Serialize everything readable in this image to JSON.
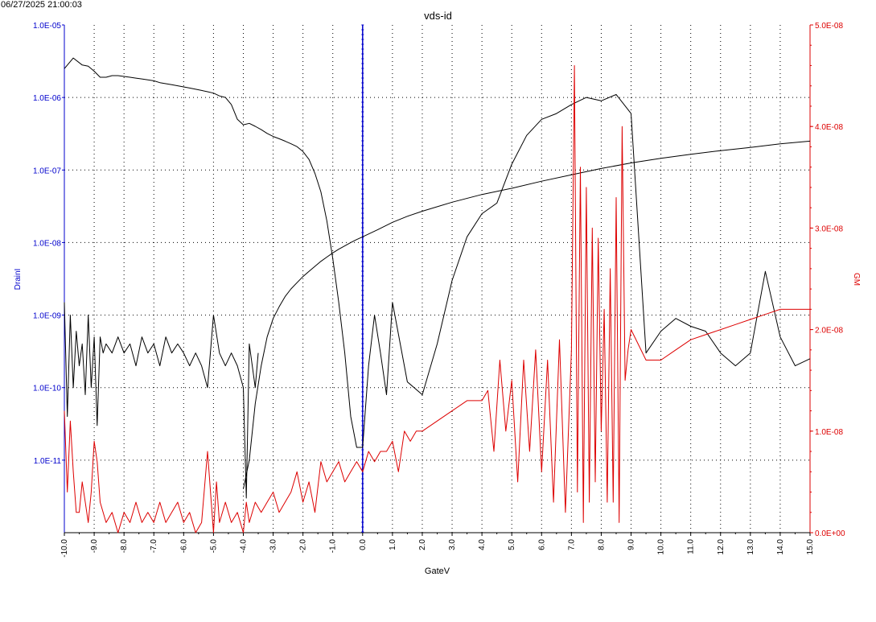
{
  "timestamp": "06/27/2025 21:00:03",
  "chart_data": {
    "type": "line",
    "title": "vds-id",
    "xlabel": "GateV",
    "ylabel": "DrainI",
    "y2label": "GM",
    "xlim": [
      -10,
      15
    ],
    "ylim": [
      1e-12,
      1e-05
    ],
    "y_scale": "log",
    "y2lim": [
      0,
      5e-08
    ],
    "grid": true,
    "colors": {
      "left_axis": "#0000cc",
      "right_axis": "#dd0000",
      "curve_default": "#000000",
      "marker_line": "#0000cc"
    },
    "x_tick_labels": [
      "-10.0",
      "-9.0",
      "-8.0",
      "-7.0",
      "-6.0",
      "-5.0",
      "-4.0",
      "-3.0",
      "-2.0",
      "-1.0",
      "0.0",
      "1.0",
      "2.0",
      "3.0",
      "4.0",
      "5.0",
      "6.0",
      "7.0",
      "8.0",
      "9.0",
      "10.0",
      "11.0",
      "12.0",
      "13.0",
      "14.0",
      "15.0"
    ],
    "y_tick_labels": [
      "1.0E-05",
      "1.0E-06",
      "1.0E-07",
      "1.0E-08",
      "1.0E-09",
      "1.0E-10",
      "1.0E-11"
    ],
    "y2_tick_labels": [
      "5.0E-08",
      "4.0E-08",
      "3.0E-08",
      "2.0E-08",
      "1.0E-08",
      "0.0E+00"
    ],
    "marker_x": 0,
    "series": [
      {
        "axis": "left",
        "color": "#000000",
        "x": [
          -10,
          -9.7,
          -9.4,
          -9.2,
          -9,
          -8.8,
          -8.6,
          -8.4,
          -8.2,
          -8,
          -7.8,
          -7.6,
          -7.4,
          -7.2,
          -7,
          -6.8,
          -6.6,
          -6.4,
          -6.2,
          -6,
          -5.8,
          -5.6,
          -5.4,
          -5.2,
          -5,
          -4.8,
          -4.6,
          -4.4,
          -4.2,
          -4,
          -3.8,
          -3.6,
          -3.4,
          -3.2,
          -3,
          -2.8,
          -2.6,
          -2.4,
          -2.2,
          -2,
          -1.8,
          -1.6,
          -1.4,
          -1.2,
          -1,
          -0.8,
          -0.6,
          -0.4,
          -0.2,
          0,
          0.2,
          0.4,
          0.6,
          0.8,
          1,
          1.5,
          2,
          2.5,
          3,
          3.5,
          4,
          4.5,
          5,
          5.5,
          6,
          6.5,
          7,
          7.5,
          8,
          8.5,
          9,
          9.5,
          10,
          10.5,
          11,
          11.5,
          12,
          12.5,
          13,
          13.5,
          14,
          14.5,
          15
        ],
        "y": [
          2.5e-06,
          3.5e-06,
          2.8e-06,
          2.7e-06,
          2.3e-06,
          1.9e-06,
          1.9e-06,
          2e-06,
          2e-06,
          1.95e-06,
          1.9e-06,
          1.85e-06,
          1.8e-06,
          1.75e-06,
          1.7e-06,
          1.6e-06,
          1.55e-06,
          1.5e-06,
          1.45e-06,
          1.4e-06,
          1.35e-06,
          1.3e-06,
          1.25e-06,
          1.2e-06,
          1.15e-06,
          1.05e-06,
          1e-06,
          8e-07,
          5e-07,
          4.2e-07,
          4.4e-07,
          4e-07,
          3.6e-07,
          3.2e-07,
          2.9e-07,
          2.7e-07,
          2.5e-07,
          2.3e-07,
          2.1e-07,
          1.8e-07,
          1.4e-07,
          9e-08,
          5e-08,
          2e-08,
          6e-09,
          1.5e-09,
          3e-10,
          4e-11,
          1.5e-11,
          1.5e-11,
          2e-10,
          1e-09,
          3e-10,
          8e-11,
          1.5e-09,
          1.2e-10,
          8e-11,
          4e-10,
          3e-09,
          1.2e-08,
          2.5e-08,
          3.5e-08,
          1.2e-07,
          3e-07,
          5e-07,
          6e-07,
          8e-07,
          1e-06,
          9e-07,
          1.1e-06,
          6e-07,
          3e-10,
          6e-10,
          9e-10,
          7e-10,
          6e-10,
          3e-10,
          2e-10,
          3e-10,
          4e-09,
          5e-10,
          2e-10,
          2.5e-10
        ]
      },
      {
        "axis": "left",
        "color": "#000000",
        "x": [
          -4,
          -3.8,
          -3.6,
          -3.4,
          -3.2,
          -3,
          -2.8,
          -2.6,
          -2.4,
          -2.2,
          -2,
          -1.8,
          -1.6,
          -1.4,
          -1.2,
          -1,
          -0.8,
          -0.6,
          -0.4,
          -0.2,
          0,
          0.5,
          1,
          1.5,
          2,
          3,
          4,
          5,
          6,
          7,
          8,
          9,
          10,
          11,
          12,
          13,
          14,
          15
        ],
        "y": [
          4e-12,
          1e-11,
          6e-11,
          2e-10,
          5e-10,
          9e-10,
          1.3e-09,
          1.8e-09,
          2.3e-09,
          2.8e-09,
          3.4e-09,
          4e-09,
          4.7e-09,
          5.5e-09,
          6.3e-09,
          7.2e-09,
          8.1e-09,
          9e-09,
          1e-08,
          1.1e-08,
          1.2e-08,
          1.5e-08,
          1.9e-08,
          2.3e-08,
          2.7e-08,
          3.6e-08,
          4.6e-08,
          5.6e-08,
          7e-08,
          8.6e-08,
          1.05e-07,
          1.25e-07,
          1.45e-07,
          1.65e-07,
          1.85e-07,
          2.05e-07,
          2.3e-07,
          2.5e-07
        ]
      },
      {
        "axis": "left",
        "color": "#000000",
        "x": [
          -10,
          -9.9,
          -9.8,
          -9.7,
          -9.6,
          -9.5,
          -9.4,
          -9.3,
          -9.2,
          -9.1,
          -9,
          -8.9,
          -8.8,
          -8.7,
          -8.6,
          -8.4,
          -8.2,
          -8,
          -7.8,
          -7.6,
          -7.4,
          -7.2,
          -7,
          -6.8,
          -6.6,
          -6.4,
          -6.2,
          -6,
          -5.8,
          -5.6,
          -5.4,
          -5.2,
          -5,
          -4.8,
          -4.6,
          -4.4,
          -4.2,
          -4,
          -3.9,
          -3.8,
          -3.7,
          -3.6,
          -3.5
        ],
        "y": [
          1.5e-09,
          4e-11,
          1e-09,
          1e-10,
          6e-10,
          2e-10,
          4e-10,
          8e-11,
          1e-09,
          1e-10,
          5e-10,
          3e-11,
          5e-10,
          3e-10,
          4e-10,
          3e-10,
          5e-10,
          3e-10,
          4e-10,
          2e-10,
          5e-10,
          3e-10,
          4e-10,
          2e-10,
          5e-10,
          3e-10,
          4e-10,
          3e-10,
          2e-10,
          3e-10,
          2e-10,
          1e-10,
          1e-09,
          3e-10,
          2e-10,
          3e-10,
          2e-10,
          1e-10,
          3e-12,
          4e-10,
          2e-10,
          1e-10,
          3e-10
        ]
      },
      {
        "axis": "right",
        "color": "#dd0000",
        "x": [
          -10,
          -9.9,
          -9.8,
          -9.7,
          -9.6,
          -9.5,
          -9.4,
          -9.3,
          -9.2,
          -9.1,
          -9,
          -8.9,
          -8.8,
          -8.6,
          -8.4,
          -8.2,
          -8,
          -7.8,
          -7.6,
          -7.4,
          -7.2,
          -7,
          -6.8,
          -6.6,
          -6.4,
          -6.2,
          -6,
          -5.8,
          -5.6,
          -5.4,
          -5.2,
          -5,
          -4.9,
          -4.8,
          -4.6,
          -4.4,
          -4.2,
          -4,
          -3.9,
          -3.8,
          -3.6,
          -3.4,
          -3.2,
          -3,
          -2.8,
          -2.6,
          -2.4,
          -2.2,
          -2,
          -1.8,
          -1.6,
          -1.4,
          -1.2,
          -1,
          -0.8,
          -0.6,
          -0.4,
          -0.2,
          0,
          0.2,
          0.4,
          0.6,
          0.8,
          1,
          1.2,
          1.4,
          1.6,
          1.8,
          2,
          2.5,
          3,
          3.5,
          4,
          4.2,
          4.4,
          4.6,
          4.8,
          5,
          5.2,
          5.4,
          5.6,
          5.8,
          6,
          6.2,
          6.4,
          6.6,
          6.8,
          7,
          7.1,
          7.2,
          7.3,
          7.4,
          7.5,
          7.6,
          7.7,
          7.8,
          7.9,
          8,
          8.1,
          8.2,
          8.3,
          8.4,
          8.5,
          8.6,
          8.7,
          8.8,
          8.9,
          9,
          9.5,
          10,
          10.5,
          11,
          11.5,
          12,
          12.5,
          13,
          13.5,
          14,
          14.5,
          15
        ],
        "y": [
          1.2e-08,
          4e-09,
          1.1e-08,
          6e-09,
          2e-09,
          2e-09,
          5e-09,
          3e-09,
          1e-09,
          4e-09,
          9e-09,
          7e-09,
          3e-09,
          1e-09,
          2e-09,
          0,
          2e-09,
          1e-09,
          3e-09,
          1e-09,
          2e-09,
          1e-09,
          3e-09,
          1e-09,
          2e-09,
          3e-09,
          1e-09,
          2e-09,
          0,
          1e-09,
          8e-09,
          0,
          5e-09,
          1e-09,
          3e-09,
          1e-09,
          2e-09,
          0,
          3e-09,
          1e-09,
          3e-09,
          2e-09,
          3e-09,
          4e-09,
          2e-09,
          3e-09,
          4e-09,
          6e-09,
          3e-09,
          5e-09,
          2e-09,
          7e-09,
          5e-09,
          6e-09,
          7e-09,
          5e-09,
          6e-09,
          7e-09,
          6e-09,
          8e-09,
          7e-09,
          8e-09,
          8e-09,
          9e-09,
          6e-09,
          1e-08,
          9e-09,
          1e-08,
          1e-08,
          1.1e-08,
          1.2e-08,
          1.3e-08,
          1.3e-08,
          1.4e-08,
          8e-09,
          1.7e-08,
          1e-08,
          1.5e-08,
          5e-09,
          1.7e-08,
          8e-09,
          1.8e-08,
          6e-09,
          1.7e-08,
          3e-09,
          1.9e-08,
          2e-09,
          1.8e-08,
          4.6e-08,
          4e-09,
          3.6e-08,
          1e-09,
          3.4e-08,
          3e-09,
          3e-08,
          5e-09,
          2.9e-08,
          1e-08,
          2.2e-08,
          3e-09,
          2.6e-08,
          3e-09,
          3.3e-08,
          1e-09,
          4e-08,
          1.5e-08,
          1.8e-08,
          2e-08,
          1.7e-08,
          1.7e-08,
          1.8e-08,
          1.9e-08,
          1.95e-08,
          2e-08,
          2.05e-08,
          2.1e-08,
          2.15e-08,
          2.2e-08,
          2.2e-08,
          2.2e-08
        ]
      }
    ]
  }
}
